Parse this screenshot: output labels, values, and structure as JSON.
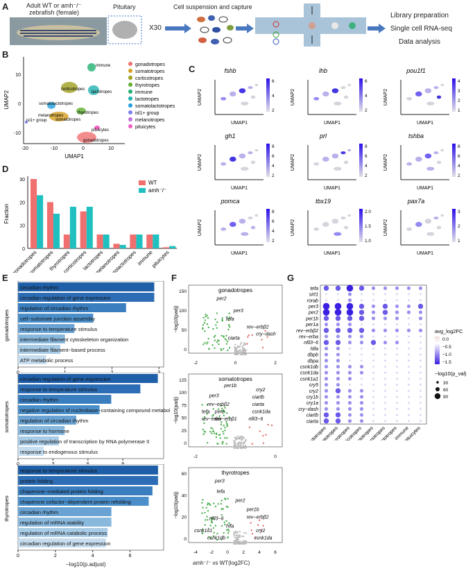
{
  "panel_letters": [
    "A",
    "B",
    "C",
    "D",
    "E",
    "F",
    "G"
  ],
  "panelA": {
    "fish_label_line1": "Adult WT or amh⁻/⁻",
    "fish_label_line2": "zebrafish (female)",
    "pituitary_label": "Pituitary",
    "x30": "X30",
    "capture_label": "Cell suspension and capture",
    "steps": [
      "Library preparation",
      "Single cell RNA-seq",
      "Data analysis"
    ]
  },
  "panelB": {
    "xlabel": "UMAP1",
    "ylabel": "UMAP2",
    "xticks": [
      "-20",
      "-10",
      "0",
      "10"
    ],
    "yticks": [
      "-10",
      "0",
      "10"
    ],
    "legend": [
      {
        "name": "gonadotropes",
        "color": "#f07070"
      },
      {
        "name": "somatotropes",
        "color": "#d4a020"
      },
      {
        "name": "corticotropes",
        "color": "#a0a020"
      },
      {
        "name": "thyrotropes",
        "color": "#60b030"
      },
      {
        "name": "immune",
        "color": "#20b070"
      },
      {
        "name": "lactotropes",
        "color": "#20b0b0"
      },
      {
        "name": "somatolactotropes",
        "color": "#20a0e0"
      },
      {
        "name": "isl1+ group",
        "color": "#8080f0"
      },
      {
        "name": "melanotropes",
        "color": "#c070e0"
      },
      {
        "name": "pituicytes",
        "color": "#f060c0"
      }
    ],
    "cluster_labels": [
      "immune",
      "corticotropes",
      "lactotropes",
      "somatolactotropes",
      "thyrotropes",
      "melanotropes",
      "somatotropes",
      "isl1+ group",
      "pituicytes",
      "gonadotropes"
    ]
  },
  "panelC": {
    "genes": [
      "fshb",
      "lhb",
      "pou1f1",
      "gh1",
      "prl",
      "tshba",
      "pomca",
      "tbx19",
      "pax7a"
    ],
    "xlabel": "UMAP1",
    "ylabel": "UMAP2",
    "scales": [
      [
        "6",
        "4",
        "2"
      ],
      [
        "6",
        "4",
        "2"
      ],
      [
        "4",
        "3",
        "2",
        "1"
      ],
      [
        "8",
        "6",
        "4",
        "2"
      ],
      [
        "8",
        "6",
        "4",
        "2"
      ],
      [
        "8",
        "6",
        "4",
        "2"
      ],
      [
        "8",
        "6",
        "4",
        "2"
      ],
      [
        "2.0",
        "1.5",
        "1.0"
      ],
      [
        "3",
        "2",
        "1"
      ]
    ]
  },
  "panelE": {
    "xlabel": "−log10(p.adjust)",
    "groups": [
      {
        "name": "gonadotropes",
        "ticks": [
          "0",
          "1",
          "2",
          "3"
        ],
        "terms": [
          "circadian rhythm",
          "circadian regulation of gene expression",
          "regulation of circadian rhythm",
          "cell−substrate junction assembly",
          "response to temperature stimulus",
          "intermediate filament cytoskeleton organization",
          "intermediate filament−based process",
          "ATP metabolic process"
        ]
      },
      {
        "name": "somatotropes",
        "ticks": [
          "0",
          "3",
          "6",
          "9"
        ],
        "terms": [
          "circadian regulation of gene expression",
          "response to temperature stimulus",
          "circadian rhythm",
          "negative regulation of nucleobase−containing compound metabolic process",
          "regulation of circadian rhythm",
          "response to hormone",
          "positive regulation of transcription by RNA polymerase II",
          "response to endogenous stimulus"
        ]
      },
      {
        "name": "thyrotropes",
        "ticks": [
          "0",
          "2",
          "4",
          "6"
        ],
        "terms": [
          "response to temperature stimulus",
          "protein folding",
          "chaperone−mediated protein folding",
          "chaperone cofactor−dependent protein refolding",
          "circadian rhythm",
          "regulation of mRNA stability",
          "regulation of mRNA catabolic process",
          "circadian regulation of gene expression"
        ]
      }
    ]
  },
  "panelF": {
    "xlabel": "amh⁻/⁻ vs WT(log2FC)",
    "ylabel": "−log10(padj)",
    "plots": [
      {
        "title": "gonadotropes",
        "yticks": [
          "150",
          "100",
          "50",
          "0"
        ],
        "xticks": [
          "-2",
          "0",
          "2"
        ],
        "genes": [
          "per2",
          "per3",
          "tefa",
          "rev−erbβ2",
          "cry−dash",
          "ciarta"
        ]
      },
      {
        "title": "somatotropes",
        "yticks": [
          "125",
          "100",
          "75",
          "50",
          "25",
          "0"
        ],
        "xticks": [
          "-2",
          "0"
        ],
        "genes": [
          "per1b",
          "cry2",
          "ciartb",
          "ciarta",
          "csnk1da",
          "nfil3−6",
          "per3",
          "rev−erbβ2",
          "tefa",
          "per2",
          "rev−erbα",
          "rev−erbβ1"
        ]
      },
      {
        "title": "thyrotropes",
        "yticks": [
          "60",
          "40",
          "20",
          "0"
        ],
        "xticks": [
          "-4",
          "-2",
          "0",
          "2",
          "4",
          "6"
        ],
        "genes": [
          "per3",
          "tefa",
          "per2",
          "per1b",
          "rev−erbβ2",
          "nfil3−6",
          "hlfa",
          "csnk1δ1",
          "cry2",
          "csnk1db",
          "csnk1da"
        ]
      }
    ]
  },
  "panelG": {
    "genes": [
      "tefa",
      "sirt1",
      "rorab",
      "per3",
      "per2",
      "per1b",
      "per1a",
      "rev−erbβ2",
      "rev−erba",
      "nfil3−6",
      "hlfa",
      "dbpb",
      "dbpa",
      "csnk1db",
      "csnk1da",
      "csnk1a1",
      "cry5",
      "cry2",
      "cry1b",
      "cry1a",
      "cry−dash",
      "ciartb",
      "ciarta"
    ],
    "celltypes": [
      "gonadotropes",
      "somatotropes",
      "thyrotropes",
      "corticotropes",
      "lactotropes",
      "melanotropes",
      "somatolactotropes",
      "immune",
      "pituicytes"
    ],
    "legend_title1": "avg_log2FC",
    "legend_ticks1": [
      "0.0",
      "−0.5",
      "−1.0",
      "−1.5"
    ],
    "legend_title2": "−log10(p_val)",
    "legend_sizes": [
      "30",
      "60",
      "90"
    ]
  },
  "chart_data": [
    {
      "type": "bar",
      "panel": "D",
      "ylabel": "Fraction",
      "categories": [
        "gonadotropes",
        "somatotropes",
        "thyrotropes",
        "corticotropes",
        "lactotropes",
        "melanotropes",
        "somatolactotropes",
        "immune",
        "pituicytes"
      ],
      "series": [
        {
          "name": "WT",
          "color": "#f07070",
          "values": [
            30,
            20,
            6,
            16,
            6,
            2,
            6,
            6,
            0.5
          ]
        },
        {
          "name": "amh⁻/⁻",
          "color": "#20c0c0",
          "values": [
            23,
            15,
            18,
            18,
            6,
            1.5,
            6,
            6,
            1
          ]
        }
      ],
      "ylim": [
        0,
        30
      ],
      "yticks": [
        "0",
        "10",
        "20",
        "30"
      ]
    },
    {
      "type": "bar",
      "panel": "E-gonadotropes",
      "values": [
        2.9,
        2.9,
        2.3,
        1.6,
        1.2,
        1.0,
        0.9,
        0.6
      ],
      "xlim": [
        0,
        3.1
      ]
    },
    {
      "type": "bar",
      "panel": "E-somatotropes",
      "values": [
        12,
        10.5,
        8,
        7,
        5,
        4,
        3.5,
        2.2
      ],
      "xlim": [
        0,
        12.5
      ]
    },
    {
      "type": "bar",
      "panel": "E-thyrotropes",
      "values": [
        7.5,
        7.5,
        7.2,
        7.0,
        5,
        5,
        4.8,
        4.7
      ],
      "xlim": [
        0,
        7.8
      ]
    }
  ]
}
